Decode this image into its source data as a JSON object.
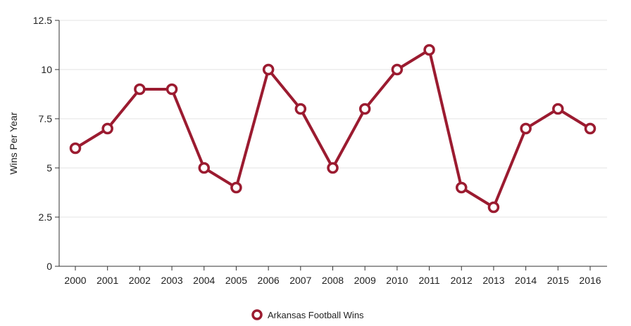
{
  "chart_data": {
    "type": "line",
    "title": "",
    "xlabel": "",
    "ylabel": "Wins Per Year",
    "ylim": [
      0,
      12.5
    ],
    "y_ticks": [
      "0",
      "2.5",
      "5",
      "7.5",
      "10",
      "12.5"
    ],
    "y_tick_values": [
      0,
      2.5,
      5,
      7.5,
      10,
      12.5
    ],
    "categories": [
      "2000",
      "2001",
      "2002",
      "2003",
      "2004",
      "2005",
      "2006",
      "2007",
      "2008",
      "2009",
      "2010",
      "2011",
      "2012",
      "2013",
      "2014",
      "2015",
      "2016"
    ],
    "series": [
      {
        "name": "Arkansas Football Wins",
        "color": "#9b1b30",
        "values": [
          6,
          7,
          9,
          9,
          5,
          4,
          10,
          8,
          5,
          8,
          10,
          11,
          4,
          3,
          7,
          8,
          7
        ]
      }
    ],
    "grid": true,
    "legend": "bottom-center"
  }
}
